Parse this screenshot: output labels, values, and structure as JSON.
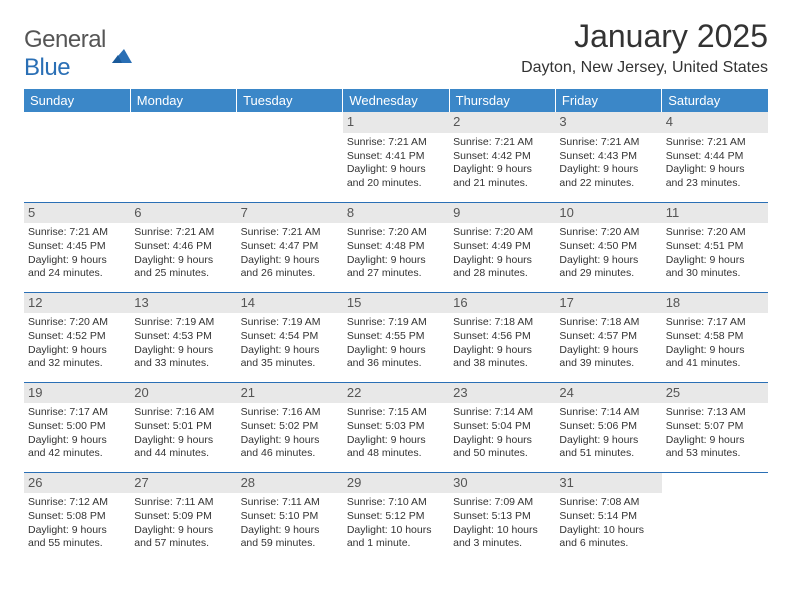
{
  "brand": {
    "name_a": "General",
    "name_b": "Blue"
  },
  "title": "January 2025",
  "location": "Dayton, New Jersey, United States",
  "colors": {
    "header_bg": "#3b87c8",
    "rule": "#2a6fb5",
    "daynum_bg": "#e8e8e8",
    "text": "#333333"
  },
  "day_headers": [
    "Sunday",
    "Monday",
    "Tuesday",
    "Wednesday",
    "Thursday",
    "Friday",
    "Saturday"
  ],
  "weeks": [
    [
      null,
      null,
      null,
      {
        "n": "1",
        "sr": "7:21 AM",
        "ss": "4:41 PM",
        "dl": "9 hours and 20 minutes."
      },
      {
        "n": "2",
        "sr": "7:21 AM",
        "ss": "4:42 PM",
        "dl": "9 hours and 21 minutes."
      },
      {
        "n": "3",
        "sr": "7:21 AM",
        "ss": "4:43 PM",
        "dl": "9 hours and 22 minutes."
      },
      {
        "n": "4",
        "sr": "7:21 AM",
        "ss": "4:44 PM",
        "dl": "9 hours and 23 minutes."
      }
    ],
    [
      {
        "n": "5",
        "sr": "7:21 AM",
        "ss": "4:45 PM",
        "dl": "9 hours and 24 minutes."
      },
      {
        "n": "6",
        "sr": "7:21 AM",
        "ss": "4:46 PM",
        "dl": "9 hours and 25 minutes."
      },
      {
        "n": "7",
        "sr": "7:21 AM",
        "ss": "4:47 PM",
        "dl": "9 hours and 26 minutes."
      },
      {
        "n": "8",
        "sr": "7:20 AM",
        "ss": "4:48 PM",
        "dl": "9 hours and 27 minutes."
      },
      {
        "n": "9",
        "sr": "7:20 AM",
        "ss": "4:49 PM",
        "dl": "9 hours and 28 minutes."
      },
      {
        "n": "10",
        "sr": "7:20 AM",
        "ss": "4:50 PM",
        "dl": "9 hours and 29 minutes."
      },
      {
        "n": "11",
        "sr": "7:20 AM",
        "ss": "4:51 PM",
        "dl": "9 hours and 30 minutes."
      }
    ],
    [
      {
        "n": "12",
        "sr": "7:20 AM",
        "ss": "4:52 PM",
        "dl": "9 hours and 32 minutes."
      },
      {
        "n": "13",
        "sr": "7:19 AM",
        "ss": "4:53 PM",
        "dl": "9 hours and 33 minutes."
      },
      {
        "n": "14",
        "sr": "7:19 AM",
        "ss": "4:54 PM",
        "dl": "9 hours and 35 minutes."
      },
      {
        "n": "15",
        "sr": "7:19 AM",
        "ss": "4:55 PM",
        "dl": "9 hours and 36 minutes."
      },
      {
        "n": "16",
        "sr": "7:18 AM",
        "ss": "4:56 PM",
        "dl": "9 hours and 38 minutes."
      },
      {
        "n": "17",
        "sr": "7:18 AM",
        "ss": "4:57 PM",
        "dl": "9 hours and 39 minutes."
      },
      {
        "n": "18",
        "sr": "7:17 AM",
        "ss": "4:58 PM",
        "dl": "9 hours and 41 minutes."
      }
    ],
    [
      {
        "n": "19",
        "sr": "7:17 AM",
        "ss": "5:00 PM",
        "dl": "9 hours and 42 minutes."
      },
      {
        "n": "20",
        "sr": "7:16 AM",
        "ss": "5:01 PM",
        "dl": "9 hours and 44 minutes."
      },
      {
        "n": "21",
        "sr": "7:16 AM",
        "ss": "5:02 PM",
        "dl": "9 hours and 46 minutes."
      },
      {
        "n": "22",
        "sr": "7:15 AM",
        "ss": "5:03 PM",
        "dl": "9 hours and 48 minutes."
      },
      {
        "n": "23",
        "sr": "7:14 AM",
        "ss": "5:04 PM",
        "dl": "9 hours and 50 minutes."
      },
      {
        "n": "24",
        "sr": "7:14 AM",
        "ss": "5:06 PM",
        "dl": "9 hours and 51 minutes."
      },
      {
        "n": "25",
        "sr": "7:13 AM",
        "ss": "5:07 PM",
        "dl": "9 hours and 53 minutes."
      }
    ],
    [
      {
        "n": "26",
        "sr": "7:12 AM",
        "ss": "5:08 PM",
        "dl": "9 hours and 55 minutes."
      },
      {
        "n": "27",
        "sr": "7:11 AM",
        "ss": "5:09 PM",
        "dl": "9 hours and 57 minutes."
      },
      {
        "n": "28",
        "sr": "7:11 AM",
        "ss": "5:10 PM",
        "dl": "9 hours and 59 minutes."
      },
      {
        "n": "29",
        "sr": "7:10 AM",
        "ss": "5:12 PM",
        "dl": "10 hours and 1 minute."
      },
      {
        "n": "30",
        "sr": "7:09 AM",
        "ss": "5:13 PM",
        "dl": "10 hours and 3 minutes."
      },
      {
        "n": "31",
        "sr": "7:08 AM",
        "ss": "5:14 PM",
        "dl": "10 hours and 6 minutes."
      },
      null
    ]
  ],
  "labels": {
    "sunrise": "Sunrise: ",
    "sunset": "Sunset: ",
    "daylight": "Daylight: "
  }
}
